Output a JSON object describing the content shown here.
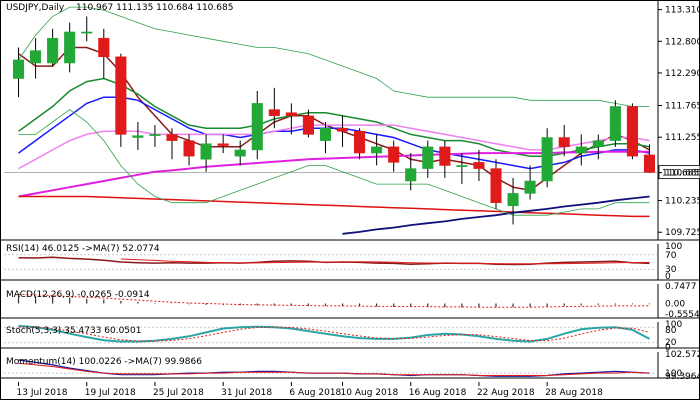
{
  "header": {
    "symbol": "USDJPY,Daily",
    "ohlc": "110.967 111.135 110.684 110.685"
  },
  "colors": {
    "bull": "#22a837",
    "bear": "#e01a1a",
    "ma_fast": "#8b1a1a",
    "ma_green": "#1a8a2e",
    "ma_blue": "#1a1aff",
    "ma_pink": "#f080f0",
    "ma_magenta": "#e020e0",
    "ma_red": "#e01010",
    "ma_navy": "#10107a",
    "bollinger": "#2ea04a",
    "price_line": "#9a9a9a",
    "price_box": "#ffffff"
  },
  "main_axis": {
    "ticks": [
      "113.310",
      "112.800",
      "112.290",
      "111.765",
      "111.255",
      "110.685",
      "110.235",
      "109.725"
    ],
    "current_price": "110.685"
  },
  "x_axis": {
    "labels": [
      "13 Jul 2018",
      "19 Jul 2018",
      "25 Jul 2018",
      "31 Jul 2018",
      "6 Aug 2018",
      "10 Aug 2018",
      "16 Aug 2018",
      "22 Aug 2018",
      "28 Aug 2018"
    ]
  },
  "panels": {
    "rsi": {
      "label": "RSI(14) 46.0125 ->MA(7) 52.0774",
      "ticks": [
        "100",
        "70",
        "30",
        "0"
      ]
    },
    "macd": {
      "label": "MACD(12,26,9) -0.0265 -0.0914",
      "ticks": [
        "0.7477",
        "0.00",
        "-0.5554"
      ]
    },
    "stoch": {
      "label": "Stoch(5,3,3) 35.4733 60.0501",
      "ticks": [
        "100",
        "80",
        "20",
        "0"
      ]
    },
    "momentum": {
      "label": "Momentum(14) 100.0226 ->MA(7) 99.9866",
      "ticks": [
        "102.5727",
        "100",
        "99.3964"
      ]
    }
  },
  "chart_data": {
    "type": "candlestick",
    "title": "USDJPY,Daily",
    "ylim": [
      109.6,
      113.4
    ],
    "candles": [
      {
        "o": 112.2,
        "h": 112.7,
        "l": 111.9,
        "c": 112.5
      },
      {
        "o": 112.45,
        "h": 112.85,
        "l": 112.2,
        "c": 112.65
      },
      {
        "o": 112.45,
        "h": 113.0,
        "l": 112.4,
        "c": 112.85
      },
      {
        "o": 112.45,
        "h": 113.1,
        "l": 112.3,
        "c": 112.95
      },
      {
        "o": 112.95,
        "h": 113.2,
        "l": 112.8,
        "c": 112.95
      },
      {
        "o": 112.85,
        "h": 113.0,
        "l": 112.2,
        "c": 112.55
      },
      {
        "o": 112.55,
        "h": 112.6,
        "l": 111.1,
        "c": 111.3
      },
      {
        "o": 111.25,
        "h": 111.5,
        "l": 111.05,
        "c": 111.28
      },
      {
        "o": 111.3,
        "h": 111.45,
        "l": 111.1,
        "c": 111.3
      },
      {
        "o": 111.3,
        "h": 111.4,
        "l": 110.9,
        "c": 111.2
      },
      {
        "o": 111.2,
        "h": 111.3,
        "l": 110.8,
        "c": 110.95
      },
      {
        "o": 110.9,
        "h": 111.3,
        "l": 110.7,
        "c": 111.15
      },
      {
        "o": 111.15,
        "h": 111.3,
        "l": 111.0,
        "c": 111.12
      },
      {
        "o": 110.95,
        "h": 111.2,
        "l": 110.8,
        "c": 111.05
      },
      {
        "o": 111.05,
        "h": 112.0,
        "l": 110.9,
        "c": 111.8
      },
      {
        "o": 111.7,
        "h": 112.05,
        "l": 111.4,
        "c": 111.6
      },
      {
        "o": 111.65,
        "h": 111.8,
        "l": 111.3,
        "c": 111.6
      },
      {
        "o": 111.6,
        "h": 111.7,
        "l": 111.25,
        "c": 111.3
      },
      {
        "o": 111.2,
        "h": 111.5,
        "l": 111.0,
        "c": 111.4
      },
      {
        "o": 111.4,
        "h": 111.6,
        "l": 111.1,
        "c": 111.35
      },
      {
        "o": 111.35,
        "h": 111.4,
        "l": 110.9,
        "c": 111.0
      },
      {
        "o": 111.0,
        "h": 111.3,
        "l": 110.8,
        "c": 111.1
      },
      {
        "o": 111.1,
        "h": 111.2,
        "l": 110.7,
        "c": 110.85
      },
      {
        "o": 110.55,
        "h": 111.0,
        "l": 110.4,
        "c": 110.75
      },
      {
        "o": 110.75,
        "h": 111.2,
        "l": 110.6,
        "c": 111.1
      },
      {
        "o": 111.1,
        "h": 111.2,
        "l": 110.6,
        "c": 110.8
      },
      {
        "o": 110.8,
        "h": 111.0,
        "l": 110.5,
        "c": 110.8
      },
      {
        "o": 110.85,
        "h": 111.05,
        "l": 110.55,
        "c": 110.75
      },
      {
        "o": 110.75,
        "h": 110.9,
        "l": 110.1,
        "c": 110.2
      },
      {
        "o": 110.15,
        "h": 110.6,
        "l": 109.85,
        "c": 110.35
      },
      {
        "o": 110.35,
        "h": 110.8,
        "l": 110.25,
        "c": 110.55
      },
      {
        "o": 110.55,
        "h": 111.4,
        "l": 110.45,
        "c": 111.25
      },
      {
        "o": 111.25,
        "h": 111.45,
        "l": 110.95,
        "c": 111.1
      },
      {
        "o": 111.0,
        "h": 111.3,
        "l": 110.8,
        "c": 111.1
      },
      {
        "o": 111.1,
        "h": 111.3,
        "l": 110.9,
        "c": 111.2
      },
      {
        "o": 111.2,
        "h": 111.85,
        "l": 111.1,
        "c": 111.75
      },
      {
        "o": 111.75,
        "h": 111.8,
        "l": 110.9,
        "c": 110.95
      },
      {
        "o": 110.97,
        "h": 111.14,
        "l": 110.68,
        "c": 110.69
      }
    ],
    "series": [
      {
        "name": "ma_fast",
        "values": [
          112.6,
          112.4,
          112.4,
          112.7,
          112.7,
          112.6,
          112.3,
          111.9,
          111.6,
          111.3,
          111.2,
          111.1,
          111.1,
          111.1,
          111.3,
          111.5,
          111.6,
          111.6,
          111.45,
          111.35,
          111.25,
          111.15,
          111.05,
          110.9,
          110.85,
          110.9,
          110.85,
          110.8,
          110.6,
          110.45,
          110.4,
          110.6,
          110.8,
          111.0,
          111.15,
          111.3,
          111.2,
          111.05
        ]
      },
      {
        "name": "ma_green",
        "values": [
          111.35,
          111.55,
          111.75,
          112.0,
          112.15,
          112.2,
          112.1,
          111.95,
          111.75,
          111.6,
          111.45,
          111.4,
          111.4,
          111.4,
          111.45,
          111.55,
          111.6,
          111.65,
          111.65,
          111.6,
          111.55,
          111.5,
          111.4,
          111.3,
          111.25,
          111.2,
          111.2,
          111.15,
          111.05,
          111.0,
          110.95,
          110.95,
          111.0,
          111.05,
          111.1,
          111.15,
          111.15,
          111.1
        ]
      },
      {
        "name": "ma_blue",
        "values": [
          111.0,
          111.2,
          111.4,
          111.6,
          111.8,
          111.9,
          111.9,
          111.85,
          111.7,
          111.55,
          111.4,
          111.3,
          111.3,
          111.25,
          111.3,
          111.35,
          111.35,
          111.4,
          111.4,
          111.4,
          111.35,
          111.3,
          111.25,
          111.15,
          111.05,
          111.0,
          110.95,
          110.9,
          110.85,
          110.8,
          110.75,
          110.8,
          110.85,
          110.95,
          111.0,
          111.05,
          111.05,
          111.0
        ]
      },
      {
        "name": "ma_pink",
        "values": [
          110.75,
          110.9,
          111.05,
          111.2,
          111.3,
          111.35,
          111.35,
          111.35,
          111.3,
          111.3,
          111.3,
          111.3,
          111.3,
          111.3,
          111.3,
          111.35,
          111.4,
          111.45,
          111.45,
          111.45,
          111.45,
          111.45,
          111.45,
          111.4,
          111.35,
          111.3,
          111.25,
          111.2,
          111.15,
          111.1,
          111.05,
          111.05,
          111.1,
          111.15,
          111.2,
          111.25,
          111.25,
          111.2
        ]
      },
      {
        "name": "ma_magenta",
        "values": [
          110.3,
          110.35,
          110.4,
          110.45,
          110.5,
          110.55,
          110.6,
          110.65,
          110.7,
          110.72,
          110.75,
          110.78,
          110.8,
          110.82,
          110.84,
          110.86,
          110.88,
          110.9,
          110.91,
          110.92,
          110.93,
          110.94,
          110.95,
          110.96,
          110.97,
          110.98,
          110.99,
          111.0,
          111.0,
          111.0,
          111.0,
          111.0,
          111.01,
          111.01,
          111.02,
          111.02,
          111.02,
          111.02
        ]
      },
      {
        "name": "ma_red",
        "values": [
          110.3,
          110.3,
          110.3,
          110.3,
          110.3,
          110.29,
          110.28,
          110.27,
          110.26,
          110.25,
          110.24,
          110.23,
          110.22,
          110.21,
          110.2,
          110.19,
          110.18,
          110.17,
          110.16,
          110.15,
          110.14,
          110.13,
          110.12,
          110.11,
          110.1,
          110.09,
          110.08,
          110.07,
          110.06,
          110.05,
          110.04,
          110.03,
          110.02,
          110.01,
          110.0,
          109.99,
          109.98,
          109.98
        ]
      },
      {
        "name": "ma_navy",
        "values": [
          null,
          null,
          null,
          null,
          null,
          null,
          null,
          null,
          null,
          null,
          null,
          null,
          null,
          null,
          null,
          null,
          null,
          null,
          null,
          109.7,
          109.73,
          109.77,
          109.8,
          109.84,
          109.87,
          109.9,
          109.94,
          109.97,
          110.0,
          110.04,
          110.07,
          110.1,
          110.14,
          110.17,
          110.2,
          110.24,
          110.27,
          110.3
        ]
      },
      {
        "name": "bb_upper",
        "values": [
          112.5,
          112.9,
          113.2,
          113.35,
          113.35,
          113.3,
          113.2,
          113.1,
          113.0,
          112.95,
          112.9,
          112.85,
          112.8,
          112.75,
          112.7,
          112.7,
          112.65,
          112.6,
          112.5,
          112.4,
          112.3,
          112.2,
          112.0,
          111.95,
          111.9,
          111.9,
          111.9,
          111.9,
          111.9,
          111.9,
          111.85,
          111.85,
          111.85,
          111.85,
          111.85,
          111.8,
          111.75,
          111.75
        ]
      },
      {
        "name": "bb_lower",
        "values": [
          111.3,
          111.3,
          111.5,
          111.7,
          111.5,
          111.2,
          110.8,
          110.5,
          110.3,
          110.2,
          110.2,
          110.2,
          110.3,
          110.4,
          110.5,
          110.6,
          110.7,
          110.8,
          110.8,
          110.7,
          110.6,
          110.5,
          110.5,
          110.5,
          110.5,
          110.4,
          110.3,
          110.2,
          110.1,
          110.0,
          110.0,
          110.0,
          110.05,
          110.1,
          110.1,
          110.2,
          110.2,
          110.2
        ]
      }
    ],
    "rsi": {
      "values": [
        62,
        61,
        63,
        60,
        58,
        55,
        50,
        48,
        47,
        48,
        47,
        47,
        48,
        47,
        49,
        52,
        53,
        52,
        49,
        50,
        49,
        47,
        46,
        44,
        45,
        47,
        46,
        46,
        44,
        43,
        44,
        47,
        49,
        50,
        51,
        52,
        48,
        46
      ],
      "ylim": [
        0,
        100
      ]
    },
    "macd": {
      "values": [
        0.3,
        0.28,
        0.25,
        0.22,
        0.18,
        0.15,
        0.1,
        0.06,
        0.02,
        -0.01,
        -0.03,
        -0.05,
        -0.06,
        -0.07,
        -0.07,
        -0.08,
        -0.08,
        -0.09,
        -0.09,
        -0.1,
        -0.11,
        -0.12,
        -0.13,
        -0.13,
        -0.14,
        -0.14,
        -0.15,
        -0.15,
        -0.15,
        -0.14,
        -0.13,
        -0.11,
        -0.09,
        -0.07,
        -0.05,
        -0.04,
        -0.03,
        -0.03
      ],
      "signal": [
        0.35,
        0.33,
        0.3,
        0.27,
        0.24,
        0.21,
        0.17,
        0.13,
        0.09,
        0.05,
        0.02,
        0.0,
        -0.02,
        -0.04,
        -0.05,
        -0.06,
        -0.07,
        -0.08,
        -0.09,
        -0.09,
        -0.1,
        -0.11,
        -0.11,
        -0.12,
        -0.12,
        -0.13,
        -0.13,
        -0.14,
        -0.14,
        -0.14,
        -0.14,
        -0.13,
        -0.12,
        -0.11,
        -0.1,
        -0.09,
        -0.09,
        -0.09
      ],
      "ylim": [
        -0.5554,
        0.7477
      ]
    },
    "stoch": {
      "k": [
        85,
        80,
        70,
        55,
        42,
        30,
        25,
        25,
        28,
        35,
        45,
        60,
        75,
        80,
        82,
        80,
        75,
        65,
        55,
        45,
        38,
        35,
        35,
        40,
        50,
        55,
        52,
        45,
        35,
        28,
        25,
        35,
        55,
        72,
        78,
        80,
        70,
        35
      ],
      "d": [
        80,
        80,
        75,
        65,
        55,
        42,
        32,
        27,
        26,
        29,
        36,
        47,
        60,
        72,
        79,
        81,
        79,
        73,
        65,
        55,
        46,
        39,
        36,
        37,
        42,
        48,
        52,
        51,
        44,
        36,
        29,
        28,
        38,
        54,
        68,
        77,
        76,
        60
      ],
      "ylim": [
        0,
        100
      ]
    },
    "momentum": {
      "values": [
        101.6,
        101.3,
        101.0,
        100.6,
        100.3,
        100.0,
        99.8,
        99.8,
        99.8,
        99.9,
        100.0,
        100.0,
        100.1,
        100.1,
        100.2,
        100.2,
        100.1,
        100.0,
        100.0,
        100.0,
        99.9,
        99.9,
        99.8,
        99.7,
        99.8,
        99.8,
        99.8,
        99.7,
        99.6,
        99.6,
        99.6,
        99.7,
        99.9,
        100.0,
        100.1,
        100.2,
        100.1,
        100.0
      ],
      "ma": [
        101.2,
        101.0,
        100.8,
        100.5,
        100.2,
        100.0,
        99.9,
        99.9,
        99.9,
        99.9,
        99.9,
        100.0,
        100.0,
        100.1,
        100.1,
        100.1,
        100.1,
        100.0,
        100.0,
        100.0,
        99.9,
        99.9,
        99.8,
        99.8,
        99.8,
        99.8,
        99.8,
        99.7,
        99.7,
        99.7,
        99.7,
        99.7,
        99.8,
        99.9,
        100.0,
        100.0,
        100.1,
        100.0
      ],
      "ylim": [
        99.3964,
        102.5727
      ]
    }
  }
}
